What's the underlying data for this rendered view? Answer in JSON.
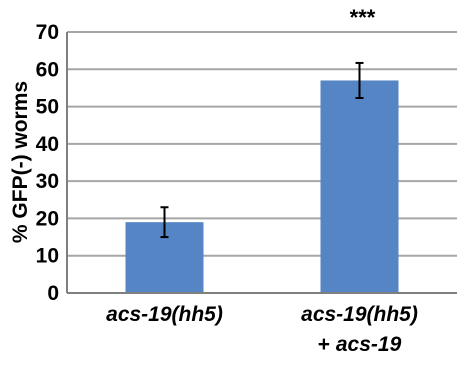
{
  "chart_data": {
    "type": "bar",
    "title": "",
    "xlabel": "",
    "ylabel": "% GFP(-) worms",
    "ylim": [
      0,
      70
    ],
    "yticks": [
      0,
      10,
      20,
      30,
      40,
      50,
      60,
      70
    ],
    "grid": true,
    "categories": [
      {
        "line1": "acs-19(hh5)",
        "line2_prefix": "",
        "line2_italic": ""
      },
      {
        "line1": "acs-19(hh5)",
        "line2_prefix": "+ ",
        "line2_italic": "acs-19"
      }
    ],
    "values": [
      19,
      57
    ],
    "errors": [
      4,
      4.7
    ],
    "significance": [
      "",
      "***"
    ],
    "bar_color": "#5585c5",
    "error_color": "#000000",
    "grid_color": "#a6a6a6"
  }
}
